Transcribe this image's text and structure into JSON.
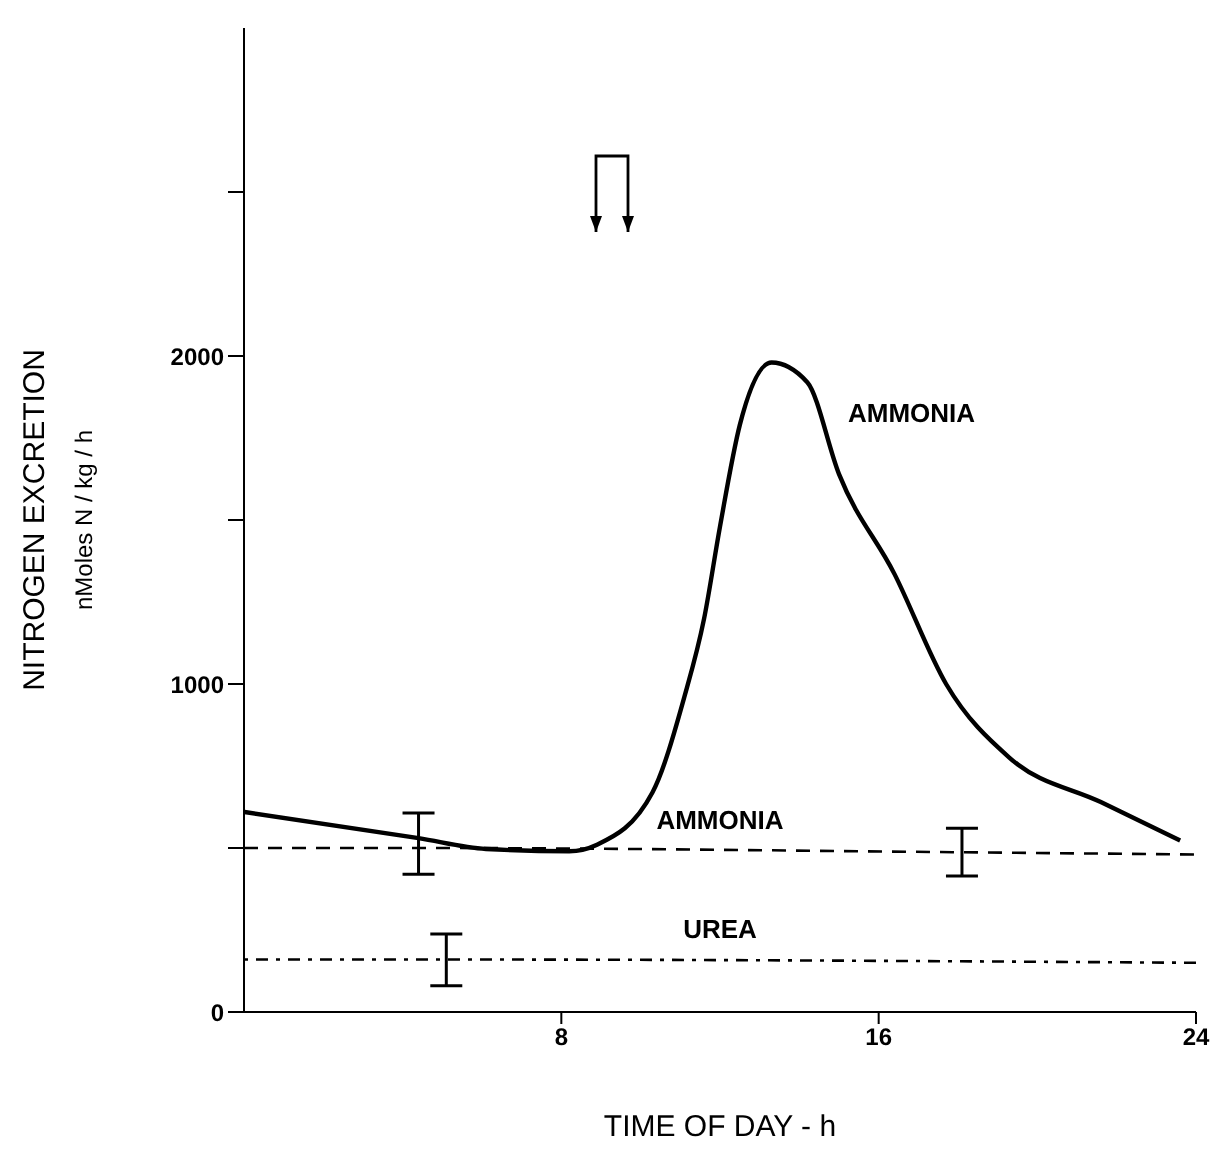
{
  "chart_data": {
    "type": "line",
    "xlabel": "TIME OF DAY - h",
    "ylabel": "NITROGEN EXCRETION\nnMoles N / kg / h",
    "xlim": [
      0,
      24
    ],
    "xticks": [
      8,
      16,
      24
    ],
    "ylim": [
      0,
      3000
    ],
    "yticks": [
      0,
      {
        "value": 500,
        "label": null
      },
      1000,
      {
        "value": 1500,
        "label": null
      },
      2000,
      {
        "value": 2500,
        "label": null
      }
    ],
    "grid": false,
    "legend": false,
    "marker": "none",
    "series": [
      {
        "name": "AMMONIA",
        "color": "#000000",
        "line_style": "solid",
        "x": [
          0,
          4.4,
          6.1,
          8.2,
          8.9,
          10.3,
          11.1,
          11.6,
          12.0,
          12.5,
          13.3,
          14.2,
          15.0,
          16.4,
          17.7,
          19.3,
          21.6,
          23.6
        ],
        "values": [
          610,
          530,
          497,
          490,
          510,
          670,
          960,
          1200,
          1480,
          1790,
          1980,
          1920,
          1640,
          1335,
          1000,
          775,
          640,
          523
        ]
      },
      {
        "name": "AMMONIA",
        "color": "#000000",
        "line_style": "dashed",
        "x": [
          0,
          4.4,
          18.1,
          24
        ],
        "values": [
          500,
          500,
          487,
          480
        ],
        "errors": [
          null,
          [
            420,
            607
          ],
          [
            415,
            560
          ],
          null
        ]
      },
      {
        "name": "UREA",
        "color": "#000000",
        "line_style": "dotted",
        "x": [
          0,
          5.1,
          24
        ],
        "values": [
          160,
          160,
          150
        ],
        "errors": [
          null,
          [
            80,
            238
          ],
          null
        ]
      }
    ]
  }
}
